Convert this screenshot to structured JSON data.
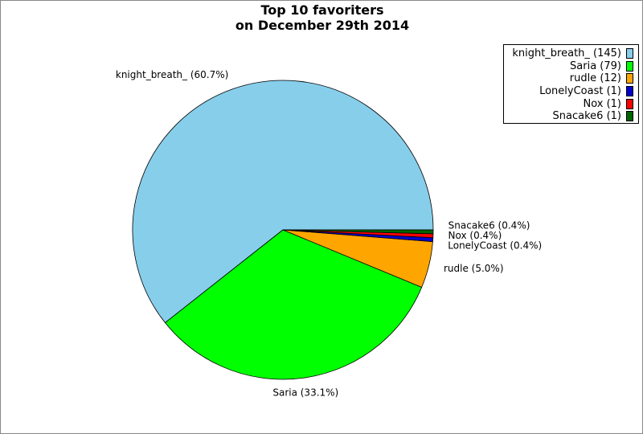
{
  "chart_data": {
    "type": "pie",
    "title": "Top 10 favoriters",
    "subtitle": "on December 29th 2014",
    "slices": [
      {
        "name": "knight_breath_",
        "value": 145,
        "percent_label": "60.7%",
        "color": "#87ceeb"
      },
      {
        "name": "Saria",
        "value": 79,
        "percent_label": "33.1%",
        "color": "#00ff00"
      },
      {
        "name": "rudle",
        "value": 12,
        "percent_label": "5.0%",
        "color": "#ffa500"
      },
      {
        "name": "LonelyCoast",
        "value": 1,
        "percent_label": "0.4%",
        "color": "#0000cd"
      },
      {
        "name": "Nox",
        "value": 1,
        "percent_label": "0.4%",
        "color": "#ff0000"
      },
      {
        "name": "Snacake6",
        "value": 1,
        "percent_label": "0.4%",
        "color": "#006400"
      }
    ],
    "legend_position": "top-right"
  }
}
